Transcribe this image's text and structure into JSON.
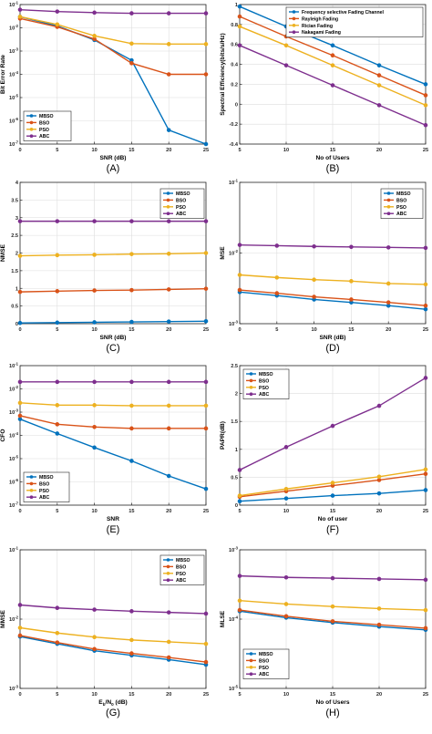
{
  "colors": {
    "blue": "#0072BD",
    "orange": "#D95319",
    "yellow": "#EDB120",
    "purple": "#7E2F8E"
  },
  "chart_data": [
    {
      "type": "line",
      "panel_label": "(A)",
      "xlabel": "SNR (dB)",
      "ylabel": "Bit Error Rate",
      "xscale": "linear",
      "yscale": "log",
      "xlim": [
        0,
        25
      ],
      "ylim": [
        1e-07,
        0.1
      ],
      "xticks": [
        0,
        5,
        10,
        15,
        20,
        25
      ],
      "xticklabels": [
        "0",
        "5",
        "10",
        "15",
        "20",
        "25"
      ],
      "yticks": [
        1e-07,
        1e-06,
        1e-05,
        0.0001,
        0.001,
        0.01,
        0.1
      ],
      "yticklabels": [
        "10-7",
        "10-6",
        "10-5",
        "10-4",
        "10-3",
        "10-2",
        "10-1"
      ],
      "grid": true,
      "legend": "bottom-left",
      "x": [
        0,
        5,
        10,
        15,
        20,
        25
      ],
      "series": [
        {
          "name": "MBSO",
          "color": "blue",
          "values": [
            0.03,
            0.012,
            0.003,
            0.0004,
            4e-07,
            1e-07
          ]
        },
        {
          "name": "BSO",
          "color": "orange",
          "values": [
            0.025,
            0.011,
            0.0033,
            0.0003,
            0.0001,
            0.0001
          ]
        },
        {
          "name": "PSO",
          "color": "yellow",
          "values": [
            0.03,
            0.014,
            0.0045,
            0.0021,
            0.002,
            0.002
          ]
        },
        {
          "name": "ABC",
          "color": "purple",
          "values": [
            0.06,
            0.05,
            0.045,
            0.042,
            0.042,
            0.042
          ]
        }
      ]
    },
    {
      "type": "line",
      "panel_label": "(B)",
      "xlabel": "No of Users",
      "ylabel": "Spectral Efficiency(bits/s/Hz)",
      "xscale": "linear",
      "yscale": "linear",
      "xlim": [
        5,
        25
      ],
      "ylim": [
        -0.4,
        1
      ],
      "xticks": [
        5,
        10,
        15,
        20,
        25
      ],
      "xticklabels": [
        "5",
        "10",
        "15",
        "20",
        "25"
      ],
      "yticks": [
        -0.4,
        -0.2,
        0,
        0.2,
        0.4,
        0.6,
        0.8,
        1
      ],
      "yticklabels": [
        "-0.4",
        "-0.2",
        "0",
        "0.2",
        "0.4",
        "0.6",
        "0.8",
        "1"
      ],
      "grid": true,
      "legend": "top-right",
      "x": [
        5,
        10,
        15,
        20,
        25
      ],
      "series": [
        {
          "name": "Frequency selective Fading Channel",
          "color": "blue",
          "values": [
            0.98,
            0.78,
            0.59,
            0.39,
            0.2
          ]
        },
        {
          "name": "Rayleigh Fading",
          "color": "orange",
          "values": [
            0.88,
            0.68,
            0.49,
            0.29,
            0.09
          ]
        },
        {
          "name": "Rician Fading",
          "color": "yellow",
          "values": [
            0.78,
            0.59,
            0.39,
            0.19,
            -0.01
          ]
        },
        {
          "name": "Nakagami Fading",
          "color": "purple",
          "values": [
            0.59,
            0.39,
            0.19,
            -0.01,
            -0.21
          ]
        }
      ]
    },
    {
      "type": "line",
      "panel_label": "(C)",
      "xlabel": "SNR (dB)",
      "ylabel": "NMSE",
      "xscale": "linear",
      "yscale": "linear",
      "xlim": [
        0,
        25
      ],
      "ylim": [
        0,
        4
      ],
      "xticks": [
        0,
        5,
        10,
        15,
        20,
        25
      ],
      "xticklabels": [
        "0",
        "5",
        "10",
        "15",
        "20",
        "25"
      ],
      "yticks": [
        0,
        0.5,
        1,
        1.5,
        2,
        2.5,
        3,
        3.5,
        4
      ],
      "yticklabels": [
        "0",
        "0.5",
        "1",
        "1.5",
        "2",
        "2.5",
        "3",
        "3.5",
        "4"
      ],
      "grid": true,
      "legend": "top-right",
      "x": [
        0,
        5,
        10,
        15,
        20,
        25
      ],
      "series": [
        {
          "name": "MBSO",
          "color": "blue",
          "values": [
            0.02,
            0.03,
            0.04,
            0.05,
            0.06,
            0.07
          ]
        },
        {
          "name": "BSO",
          "color": "orange",
          "values": [
            0.9,
            0.92,
            0.94,
            0.95,
            0.97,
            0.99
          ]
        },
        {
          "name": "PSO",
          "color": "yellow",
          "values": [
            1.92,
            1.94,
            1.95,
            1.97,
            1.98,
            2.0
          ]
        },
        {
          "name": "ABC",
          "color": "purple",
          "values": [
            2.9,
            2.9,
            2.9,
            2.9,
            2.9,
            2.9
          ]
        }
      ]
    },
    {
      "type": "line",
      "panel_label": "(D)",
      "xlabel": "SNR (dB)",
      "ylabel": "MSE",
      "xscale": "linear",
      "yscale": "log",
      "xlim": [
        0,
        25
      ],
      "ylim": [
        0.001,
        0.1
      ],
      "xticks": [
        0,
        5,
        10,
        15,
        20,
        25
      ],
      "xticklabels": [
        "0",
        "5",
        "10",
        "15",
        "20",
        "25"
      ],
      "yticks": [
        0.001,
        0.01,
        0.1
      ],
      "yticklabels": [
        "10-3",
        "10-2",
        "10-1"
      ],
      "grid": true,
      "legend": "top-right",
      "x": [
        0,
        5,
        10,
        15,
        20,
        25
      ],
      "series": [
        {
          "name": "MBSO",
          "color": "blue",
          "values": [
            0.0028,
            0.0025,
            0.0022,
            0.002,
            0.0018,
            0.0016
          ]
        },
        {
          "name": "BSO",
          "color": "orange",
          "values": [
            0.003,
            0.0027,
            0.0024,
            0.0022,
            0.002,
            0.0018
          ]
        },
        {
          "name": "PSO",
          "color": "yellow",
          "values": [
            0.0049,
            0.0045,
            0.0042,
            0.004,
            0.0037,
            0.0036
          ]
        },
        {
          "name": "ABC",
          "color": "purple",
          "values": [
            0.013,
            0.0127,
            0.0124,
            0.0122,
            0.012,
            0.0118
          ]
        }
      ]
    },
    {
      "type": "line",
      "panel_label": "(E)",
      "xlabel": "SNR",
      "ylabel": "CFO",
      "xscale": "linear",
      "yscale": "log",
      "xlim": [
        0,
        25
      ],
      "ylim": [
        1e-07,
        0.1
      ],
      "xticks": [
        0,
        5,
        10,
        15,
        20,
        25
      ],
      "xticklabels": [
        "0",
        "5",
        "10",
        "15",
        "20",
        "25"
      ],
      "yticks": [
        1e-07,
        1e-06,
        1e-05,
        0.0001,
        0.001,
        0.01,
        0.1
      ],
      "yticklabels": [
        "10-7",
        "10-6",
        "10-5",
        "10-4",
        "10-3",
        "10-2",
        "10-1"
      ],
      "grid": true,
      "legend": "bottom-left",
      "x": [
        0,
        5,
        10,
        15,
        20,
        25
      ],
      "series": [
        {
          "name": "MBSO",
          "color": "blue",
          "values": [
            0.0005,
            0.00012,
            3e-05,
            8e-06,
            1.8e-06,
            5e-07
          ]
        },
        {
          "name": "BSO",
          "color": "orange",
          "values": [
            0.0007,
            0.0003,
            0.00023,
            0.0002,
            0.0002,
            0.0002
          ]
        },
        {
          "name": "PSO",
          "color": "yellow",
          "values": [
            0.0025,
            0.002,
            0.002,
            0.0019,
            0.0019,
            0.0019
          ]
        },
        {
          "name": "ABC",
          "color": "purple",
          "values": [
            0.02,
            0.02,
            0.02,
            0.02,
            0.02,
            0.02
          ]
        }
      ]
    },
    {
      "type": "line",
      "panel_label": "(F)",
      "xlabel": "No of user",
      "ylabel": "PAPR(dB)",
      "xscale": "linear",
      "yscale": "linear",
      "xlim": [
        5,
        25
      ],
      "ylim": [
        0,
        2.5
      ],
      "xticks": [
        5,
        10,
        15,
        20,
        25
      ],
      "xticklabels": [
        "5",
        "10",
        "15",
        "20",
        "25"
      ],
      "yticks": [
        0,
        0.5,
        1,
        1.5,
        2,
        2.5
      ],
      "yticklabels": [
        "0",
        "0.5",
        "1",
        "1.5",
        "2",
        "2.5"
      ],
      "grid": true,
      "legend": "top-left",
      "x": [
        5,
        10,
        15,
        20,
        25
      ],
      "series": [
        {
          "name": "MBSO",
          "color": "blue",
          "values": [
            0.07,
            0.12,
            0.17,
            0.21,
            0.27
          ]
        },
        {
          "name": "BSO",
          "color": "orange",
          "values": [
            0.15,
            0.25,
            0.35,
            0.45,
            0.56
          ]
        },
        {
          "name": "PSO",
          "color": "yellow",
          "values": [
            0.17,
            0.29,
            0.4,
            0.51,
            0.64
          ]
        },
        {
          "name": "ABC",
          "color": "purple",
          "values": [
            0.63,
            1.04,
            1.42,
            1.78,
            2.28
          ]
        }
      ]
    },
    {
      "type": "line",
      "panel_label": "(G)",
      "xlabel": "Eb/N0 (dB)",
      "ylabel": "MMSE",
      "xscale": "linear",
      "yscale": "log",
      "xlim": [
        0,
        25
      ],
      "ylim": [
        0.001,
        0.1
      ],
      "xticks": [
        0,
        5,
        10,
        15,
        20,
        25
      ],
      "xticklabels": [
        "0",
        "5",
        "10",
        "15",
        "20",
        "25"
      ],
      "yticks": [
        0.001,
        0.01,
        0.1
      ],
      "yticklabels": [
        "10-3",
        "10-2",
        "10-1"
      ],
      "grid": true,
      "legend": "top-right",
      "x": [
        0,
        5,
        10,
        15,
        20,
        25
      ],
      "series": [
        {
          "name": "MBSO",
          "color": "blue",
          "values": [
            0.0056,
            0.0044,
            0.0035,
            0.003,
            0.0026,
            0.0022
          ]
        },
        {
          "name": "BSO",
          "color": "orange",
          "values": [
            0.0058,
            0.0046,
            0.0037,
            0.0032,
            0.0028,
            0.0024
          ]
        },
        {
          "name": "PSO",
          "color": "yellow",
          "values": [
            0.0075,
            0.0063,
            0.0055,
            0.005,
            0.0047,
            0.0044
          ]
        },
        {
          "name": "ABC",
          "color": "purple",
          "values": [
            0.016,
            0.0145,
            0.0137,
            0.013,
            0.0125,
            0.012
          ]
        }
      ]
    },
    {
      "type": "line",
      "panel_label": "(H)",
      "xlabel": "No of Users",
      "ylabel": "MLSE",
      "xscale": "linear",
      "yscale": "log",
      "xlim": [
        5,
        25
      ],
      "ylim": [
        1e-05,
        0.001
      ],
      "xticks": [
        5,
        10,
        15,
        20,
        25
      ],
      "xticklabels": [
        "5",
        "10",
        "15",
        "20",
        "25"
      ],
      "yticks": [
        1e-05,
        0.0001,
        0.001
      ],
      "yticklabels": [
        "10-5",
        "10-4",
        "10-3"
      ],
      "grid": true,
      "legend": "bottom-left",
      "x": [
        5,
        10,
        15,
        20,
        25
      ],
      "series": [
        {
          "name": "MBSO",
          "color": "blue",
          "values": [
            0.00013,
            0.000105,
            8.9e-05,
            7.8e-05,
            7e-05
          ]
        },
        {
          "name": "BSO",
          "color": "orange",
          "values": [
            0.000135,
            0.00011,
            9.3e-05,
            8.3e-05,
            7.4e-05
          ]
        },
        {
          "name": "PSO",
          "color": "yellow",
          "values": [
            0.000185,
            0.000165,
            0.000152,
            0.000142,
            0.000135
          ]
        },
        {
          "name": "ABC",
          "color": "purple",
          "values": [
            0.00042,
            0.0004,
            0.00039,
            0.00038,
            0.00037
          ]
        }
      ]
    }
  ]
}
